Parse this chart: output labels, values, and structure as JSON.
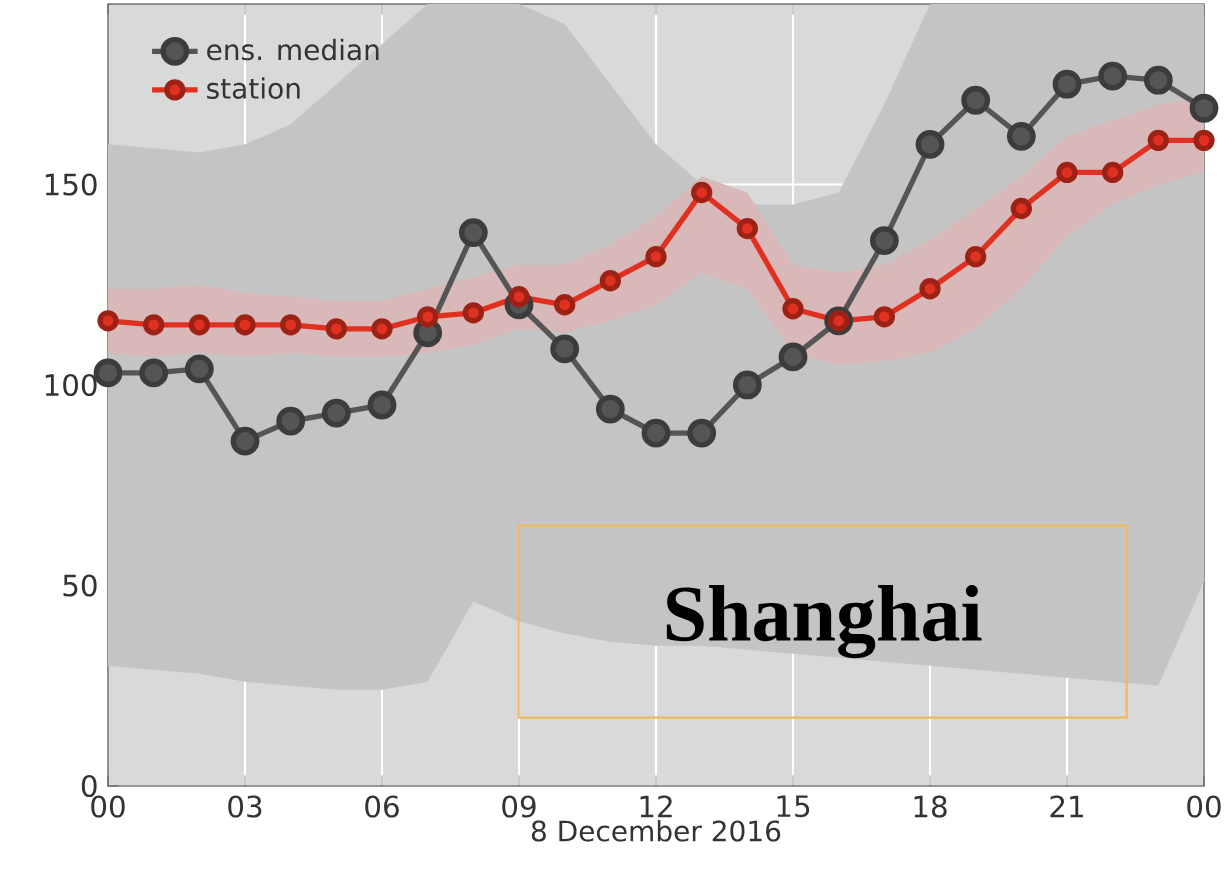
{
  "chart_data": {
    "type": "line",
    "x": [
      0,
      1,
      2,
      3,
      4,
      5,
      6,
      7,
      8,
      9,
      10,
      11,
      12,
      13,
      14,
      15,
      16,
      17,
      18,
      19,
      20,
      21,
      22,
      23,
      24
    ],
    "xlabel": "8 December 2016",
    "xlim": [
      0,
      24
    ],
    "xticks": [
      {
        "value": 0,
        "label": "00"
      },
      {
        "value": 3,
        "label": "03"
      },
      {
        "value": 6,
        "label": "06"
      },
      {
        "value": 9,
        "label": "09"
      },
      {
        "value": 12,
        "label": "12"
      },
      {
        "value": 15,
        "label": "15"
      },
      {
        "value": 18,
        "label": "18"
      },
      {
        "value": 21,
        "label": "21"
      },
      {
        "value": 24,
        "label": "00"
      }
    ],
    "ylim": [
      0,
      195
    ],
    "yticks": [
      0,
      50,
      100,
      150
    ],
    "grid": true,
    "legend": "top left",
    "marker": "circle",
    "line_style": "solid",
    "annotations": [
      "Shanghai"
    ],
    "series": [
      {
        "name": "ens. median",
        "color": "#555555",
        "values": [
          103,
          103,
          104,
          86,
          91,
          93,
          95,
          113,
          138,
          120,
          109,
          94,
          88,
          88,
          100,
          107,
          116,
          136,
          160,
          171,
          162,
          175,
          177,
          176,
          169
        ],
        "lower": [
          30,
          29,
          28,
          26,
          25,
          24,
          24,
          26,
          46,
          41,
          38,
          36,
          35,
          35,
          34,
          33,
          32,
          31,
          30,
          29,
          28,
          27,
          26,
          25,
          51
        ],
        "upper": [
          160,
          159,
          158,
          160,
          165,
          175,
          185,
          195,
          195,
          195,
          190,
          175,
          160,
          150,
          145,
          145,
          148,
          170,
          195,
          195,
          195,
          195,
          195,
          195,
          195
        ]
      },
      {
        "name": "station",
        "color": "#e03020",
        "values": [
          116,
          115,
          115,
          115,
          115,
          114,
          114,
          117,
          118,
          122,
          120,
          126,
          132,
          148,
          139,
          119,
          116,
          117,
          124,
          132,
          144,
          153,
          153,
          161,
          161
        ],
        "lower": [
          108,
          107,
          108,
          107,
          108,
          107,
          107,
          108,
          110,
          114,
          113,
          116,
          120,
          128,
          124,
          108,
          105,
          106,
          108,
          114,
          124,
          137,
          145,
          150,
          153
        ],
        "upper": [
          124,
          124,
          125,
          123,
          122,
          121,
          121,
          124,
          127,
          130,
          130,
          135,
          142,
          152,
          148,
          130,
          128,
          130,
          136,
          144,
          152,
          162,
          166,
          170,
          172
        ]
      }
    ]
  }
}
